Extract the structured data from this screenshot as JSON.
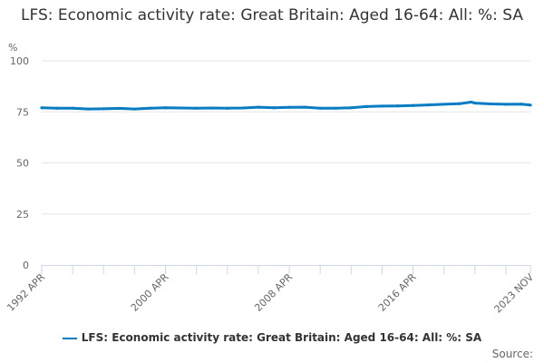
{
  "chart_data": {
    "type": "line",
    "title": "LFS: Economic activity rate: Great Britain: Aged 16-64: All: %: SA",
    "ylabel": "%",
    "ylim": [
      0,
      100
    ],
    "yticks": [
      0,
      25,
      50,
      75,
      100
    ],
    "xlim": [
      "1992 APR",
      "2023 NOV"
    ],
    "xtick_labels": [
      "1992 APR",
      "2000 APR",
      "2008 APR",
      "2016 APR",
      "2023 NOV"
    ],
    "grid": true,
    "legend_position": "bottom",
    "color": "#0a7dc2",
    "series": [
      {
        "name": "LFS: Economic activity rate: Great Britain: Aged 16-64: All: %: SA",
        "x": [
          "1992 APR",
          "1993 APR",
          "1994 APR",
          "1995 APR",
          "1996 APR",
          "1997 APR",
          "1998 APR",
          "1999 APR",
          "2000 APR",
          "2001 APR",
          "2002 APR",
          "2003 APR",
          "2004 APR",
          "2005 APR",
          "2006 APR",
          "2007 APR",
          "2008 APR",
          "2009 APR",
          "2010 APR",
          "2011 APR",
          "2012 APR",
          "2013 APR",
          "2014 APR",
          "2015 APR",
          "2016 APR",
          "2017 APR",
          "2018 APR",
          "2019 APR",
          "2020 JAN",
          "2020 APR",
          "2021 APR",
          "2022 APR",
          "2023 APR",
          "2023 NOV"
        ],
        "values": [
          77.0,
          76.8,
          76.8,
          76.4,
          76.5,
          76.7,
          76.4,
          76.8,
          77.0,
          76.9,
          76.8,
          76.9,
          76.8,
          76.9,
          77.3,
          77.0,
          77.2,
          77.3,
          76.8,
          76.8,
          77.0,
          77.6,
          77.8,
          77.9,
          78.1,
          78.4,
          78.7,
          79.0,
          79.8,
          79.3,
          78.9,
          78.7,
          78.8,
          78.3
        ]
      }
    ]
  },
  "source_label": "Source:"
}
